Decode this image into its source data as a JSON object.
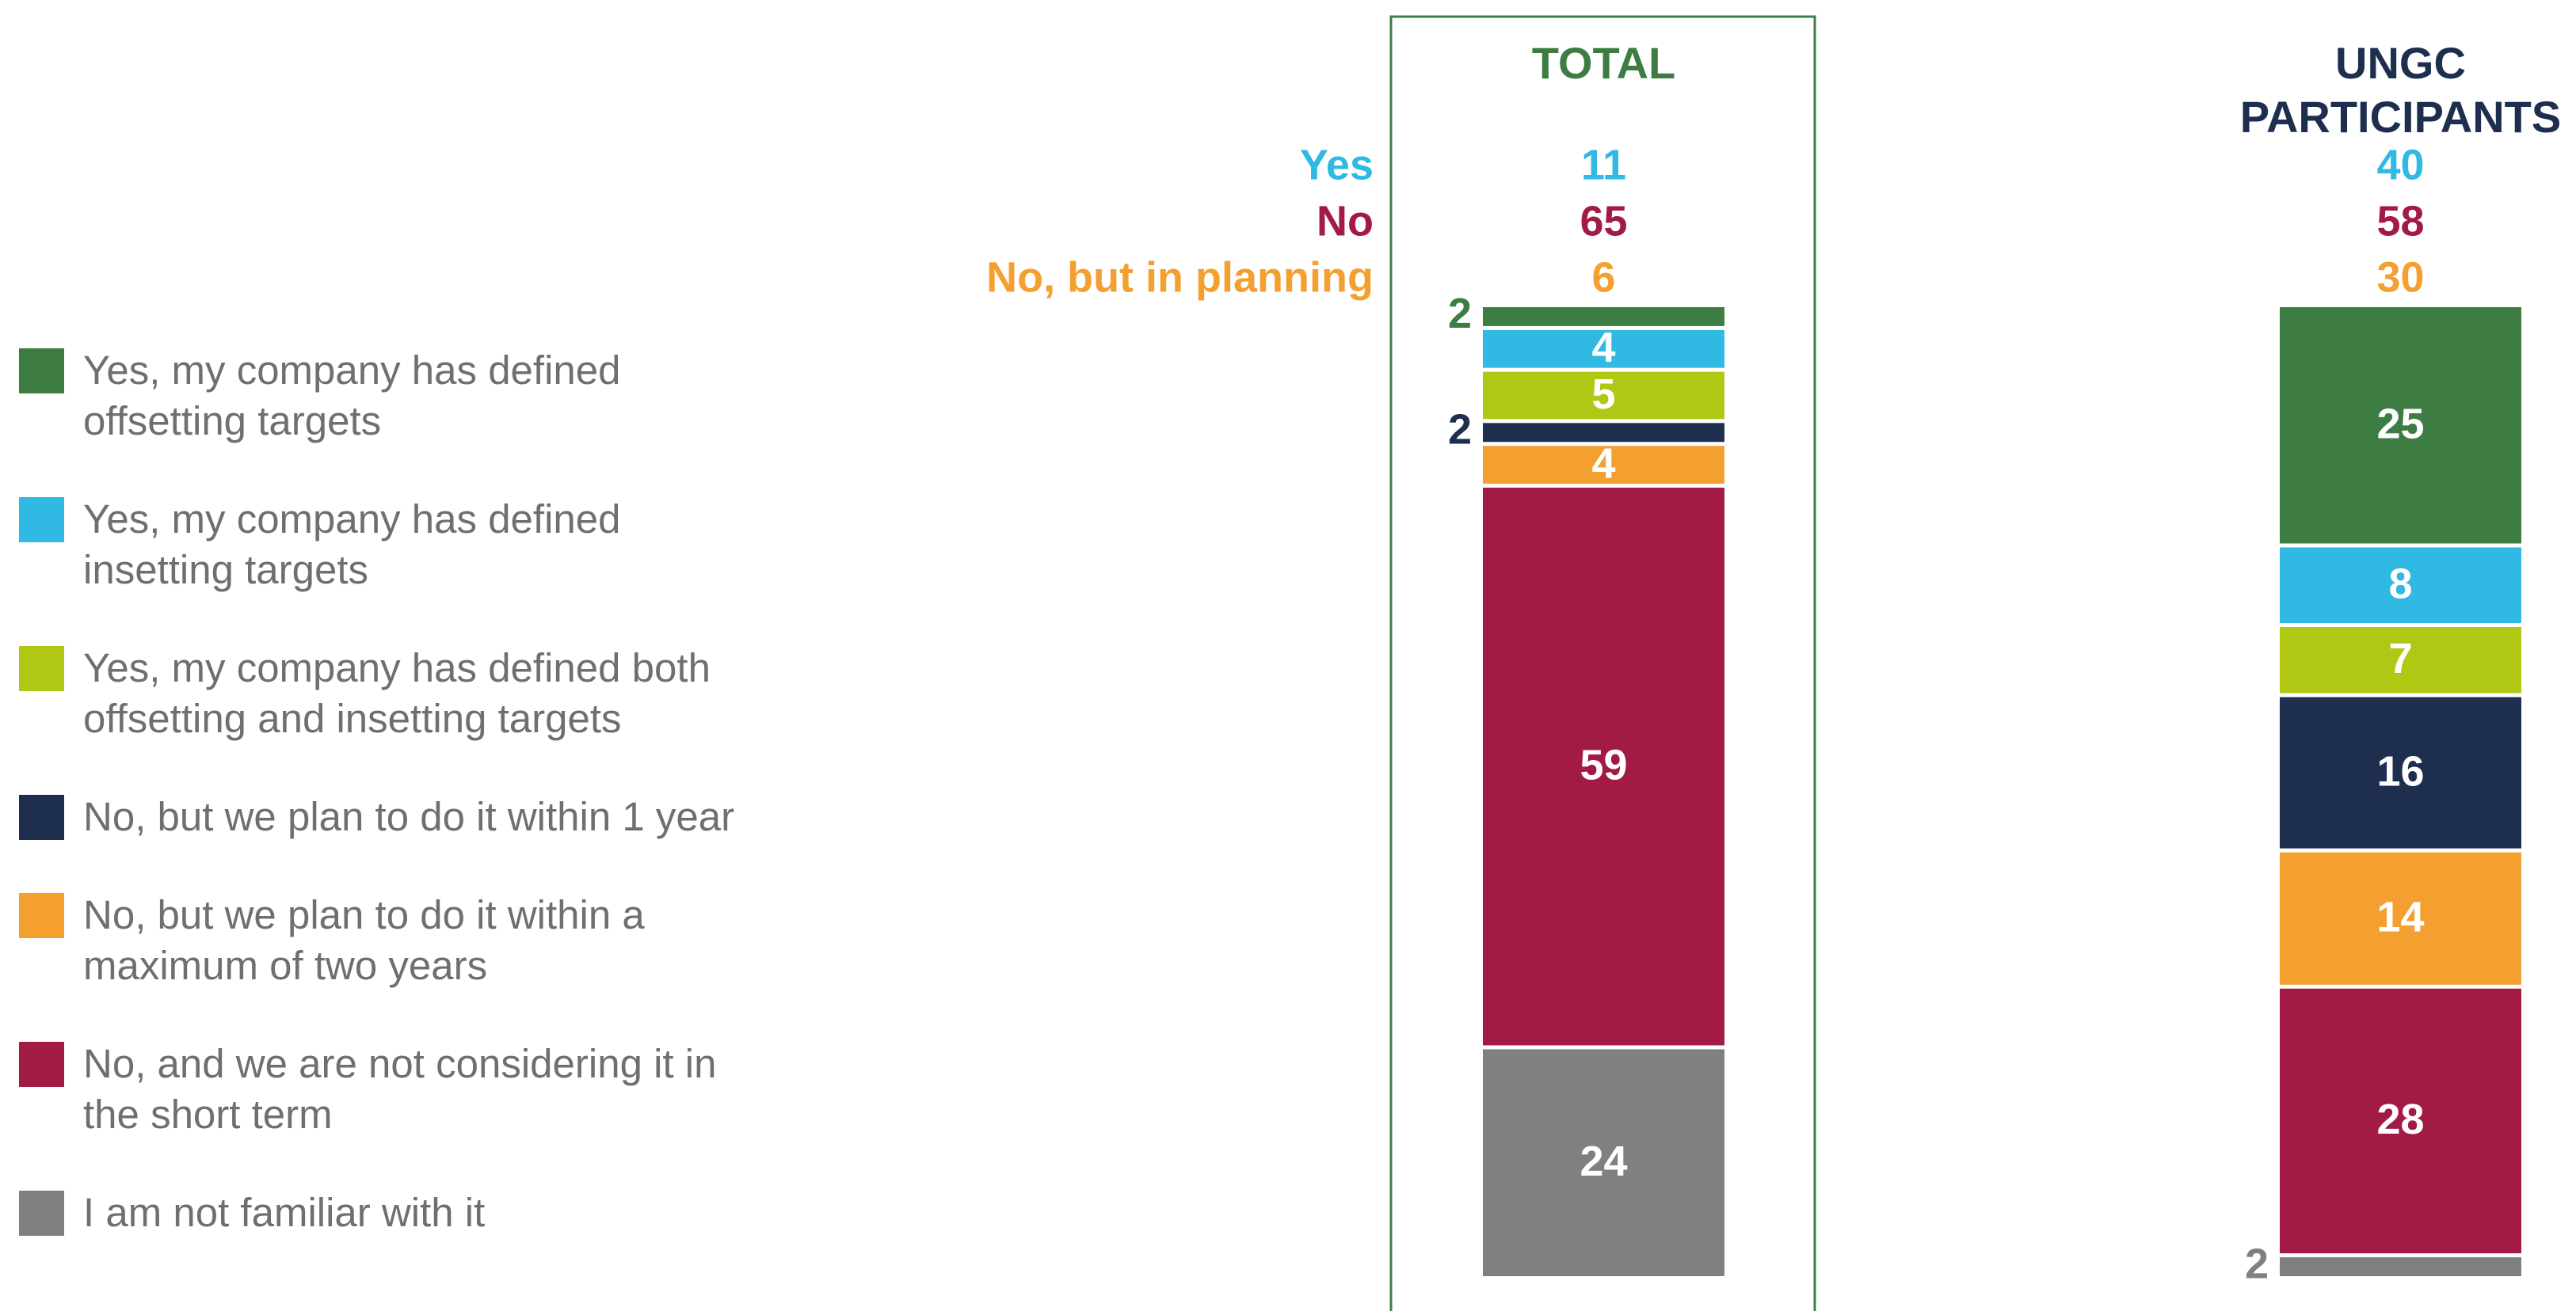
{
  "colors": {
    "offsetting": "#3d7d43",
    "insetting": "#30b9e3",
    "both": "#b0c813",
    "plan1": "#1e2e4e",
    "plan2": "#f4a031",
    "no": "#a11b44",
    "unfamiliar": "#808080",
    "panel_border": "#3d7d43"
  },
  "legend": [
    {
      "label": "Yes, my company has defined offsetting targets",
      "color_key": "offsetting"
    },
    {
      "label": "Yes, my company has defined insetting targets",
      "color_key": "insetting"
    },
    {
      "label": "Yes, my company has defined both offsetting and insetting targets",
      "color_key": "both"
    },
    {
      "label": "No, but we plan to do it within 1 year",
      "color_key": "plan1"
    },
    {
      "label": "No, but we plan to do it within a maximum of two years",
      "color_key": "plan2"
    },
    {
      "label": "No, and we are not considering it in the short term",
      "color_key": "no"
    },
    {
      "label": "I am not familiar with it",
      "color_key": "unfamiliar"
    }
  ],
  "summary_labels": [
    {
      "text": "Yes",
      "color_key": "insetting"
    },
    {
      "text": "No",
      "color_key": "no"
    },
    {
      "text": "No, but in planning",
      "color_key": "plan2"
    }
  ],
  "chart_data": {
    "type": "bar",
    "stacked": true,
    "normalized": true,
    "categories": [
      "TOTAL",
      "UNGC PARTICIPANTS"
    ],
    "series": [
      {
        "name": "Yes, my company has defined offsetting targets",
        "values": [
          2,
          25
        ]
      },
      {
        "name": "Yes, my company has defined insetting targets",
        "values": [
          4,
          8
        ]
      },
      {
        "name": "Yes, my company has defined both offsetting and insetting targets",
        "values": [
          5,
          7
        ]
      },
      {
        "name": "No, but we plan to do it within 1 year",
        "values": [
          2,
          16
        ]
      },
      {
        "name": "No, but we plan to do it within a maximum of two years",
        "values": [
          4,
          14
        ]
      },
      {
        "name": "No, and we are not considering it in the short term",
        "values": [
          59,
          28
        ]
      },
      {
        "name": "I am not familiar with it",
        "values": [
          24,
          2
        ]
      }
    ],
    "summary": [
      {
        "label": "Yes",
        "values": [
          11,
          40
        ]
      },
      {
        "label": "No",
        "values": [
          65,
          58
        ]
      },
      {
        "label": "No, but in planning",
        "values": [
          6,
          30
        ]
      }
    ],
    "legend_position": "left"
  }
}
